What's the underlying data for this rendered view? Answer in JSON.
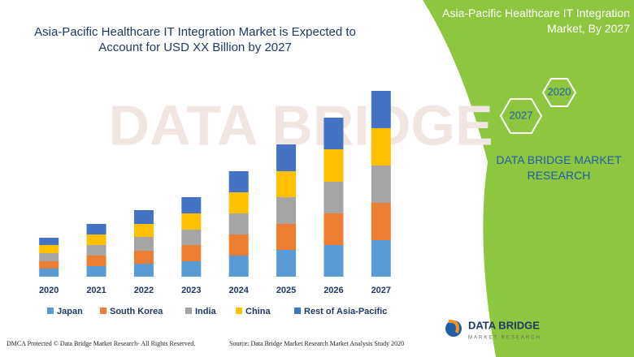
{
  "chart_data": {
    "type": "bar",
    "stacked": true,
    "title": "Asia-Pacific Healthcare IT Integration Market is Expected to Account for USD XX Billion by 2027",
    "categories": [
      "2020",
      "2021",
      "2022",
      "2023",
      "2024",
      "2025",
      "2026",
      "2027"
    ],
    "series": [
      {
        "name": "Japan",
        "color": "#5b9bd5",
        "values": [
          10,
          13,
          16,
          19,
          26,
          33,
          39,
          45
        ]
      },
      {
        "name": "South Korea",
        "color": "#ed7d31",
        "values": [
          9,
          13,
          16,
          20,
          26,
          32,
          39,
          46
        ]
      },
      {
        "name": "India",
        "color": "#a5a5a5",
        "values": [
          10,
          13,
          17,
          19,
          26,
          33,
          39,
          46
        ]
      },
      {
        "name": "China",
        "color": "#ffc000",
        "values": [
          10,
          13,
          16,
          20,
          26,
          32,
          40,
          46
        ]
      },
      {
        "name": "Rest of Asia-Pacific",
        "color": "#4472c4",
        "values": [
          9,
          13,
          17,
          20,
          26,
          33,
          39,
          46
        ]
      }
    ],
    "ylim": [
      0,
      250
    ]
  },
  "panel": {
    "title": "Asia-Pacific Healthcare IT Integration Market, By 2027",
    "hexagons": [
      "2020",
      "2027"
    ],
    "brand": "DATA BRIDGE MARKET RESEARCH"
  },
  "logo": {
    "name": "DATA BRIDGE",
    "tagline": "MARKET RESEARCH"
  },
  "footer": {
    "left": "DMCA Protected © Data Bridge Market Research- All Rights Reserved.",
    "right": "Source: Data Bridge Market Research Market Analysis Study 2020"
  }
}
